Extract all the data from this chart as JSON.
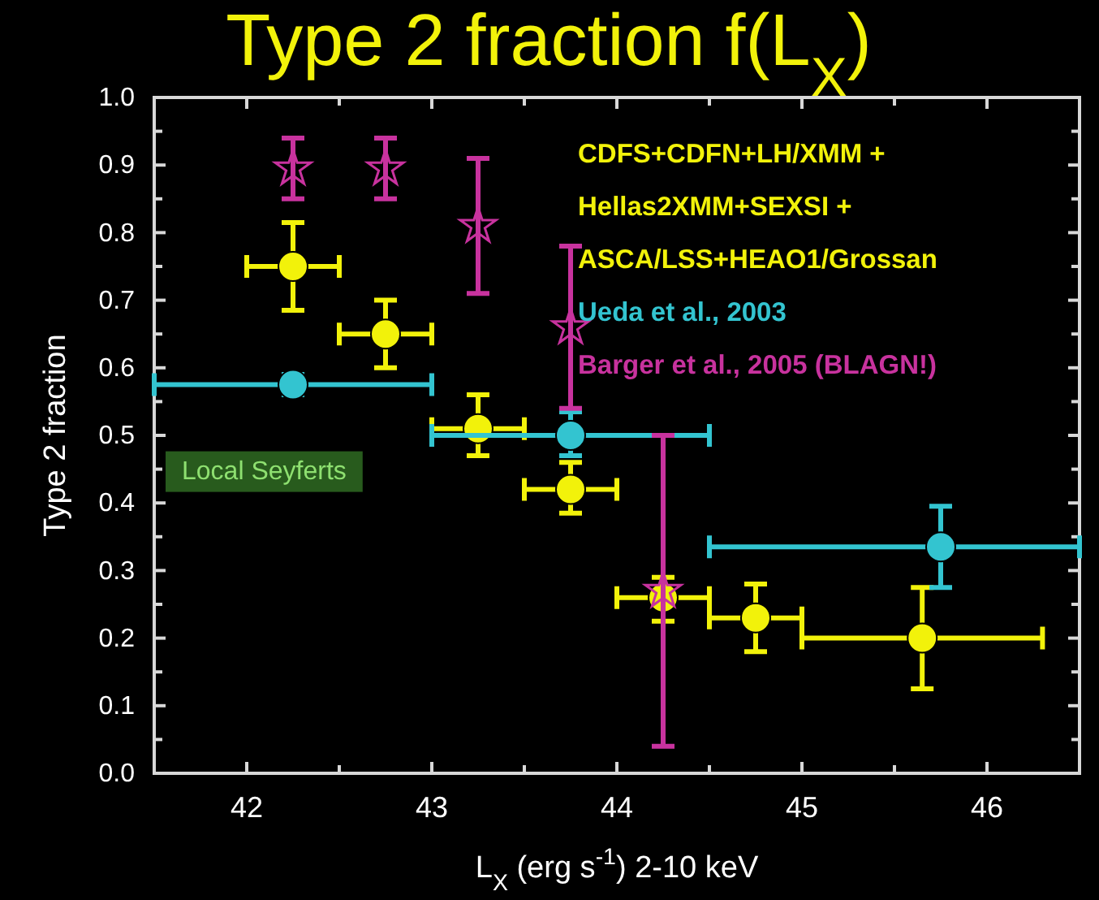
{
  "chart_data": {
    "type": "scatter",
    "title": "Type 2 fraction f(L$_{X}$)",
    "xlabel": "L$_{X}$ (erg s$^{-1}$) 2-10 keV",
    "ylabel": "Type 2 fraction",
    "xlim": [
      41.5,
      46.5
    ],
    "ylim": [
      0,
      1
    ],
    "xticks": [
      {
        "value": 41.5,
        "label": null
      },
      42,
      {
        "value": 42.5,
        "label": null
      },
      43,
      {
        "value": 43.5,
        "label": null
      },
      44,
      {
        "value": 44.5,
        "label": null
      },
      45,
      {
        "value": 45.5,
        "label": null
      },
      46,
      {
        "value": 46.5,
        "label": null
      }
    ],
    "yticks": [
      {
        "value": 0,
        "label": "0.0"
      },
      {
        "value": 0.05,
        "label": null
      },
      0.1,
      {
        "value": 0.15,
        "label": null
      },
      0.2,
      {
        "value": 0.25,
        "label": null
      },
      0.3,
      {
        "value": 0.35,
        "label": null
      },
      0.4,
      {
        "value": 0.45,
        "label": null
      },
      0.5,
      {
        "value": 0.55,
        "label": null
      },
      0.6,
      {
        "value": 0.65,
        "label": null
      },
      0.7,
      {
        "value": 0.75,
        "label": null
      },
      0.8,
      {
        "value": 0.85,
        "label": null
      },
      0.9,
      {
        "value": 0.95,
        "label": null
      },
      {
        "value": 1,
        "label": "1.0"
      }
    ],
    "grid": false,
    "legend": "top right",
    "annotations": [
      "Local Seyferts"
    ],
    "series": [
      {
        "name": "CDFS+CDFN+LH/XMM + Hellas2XMM+SEXSI + ASCA/LSS+HEAO1/Grossan",
        "color": "#f2f20a",
        "marker": "circle",
        "x": [
          42.25,
          42.75,
          43.25,
          43.75,
          44.25,
          44.75,
          45.65
        ],
        "values": [
          0.75,
          0.65,
          0.51,
          0.42,
          0.26,
          0.23,
          0.2
        ],
        "errors": [
          [
            0.685,
            0.815
          ],
          [
            0.6,
            0.7
          ],
          [
            0.47,
            0.56
          ],
          [
            0.385,
            0.46
          ],
          [
            0.225,
            0.29
          ],
          [
            0.18,
            0.28
          ],
          [
            0.125,
            0.275
          ]
        ],
        "xerrors": [
          [
            42,
            42.5
          ],
          [
            42.5,
            43
          ],
          [
            43,
            43.5
          ],
          [
            43.5,
            44
          ],
          [
            44,
            44.5
          ],
          [
            44.5,
            45
          ],
          [
            45,
            46.3
          ]
        ]
      },
      {
        "name": "Ueda et al., 2003",
        "color": "#33c4d0",
        "x": [
          42.25,
          43.75,
          45.75
        ],
        "values": [
          0.575,
          0.5,
          0.335
        ],
        "errors": [
          [
            0.56,
            0.59
          ],
          [
            0.47,
            0.535
          ],
          [
            0.275,
            0.395
          ]
        ],
        "xerrors": [
          [
            41.5,
            43
          ],
          [
            43,
            44.5
          ],
          [
            44.5,
            46.5
          ]
        ]
      },
      {
        "name": "Barger et al., 2005 (BLAGN!)",
        "color": "#c8329e",
        "marker": "star",
        "x": [
          42.25,
          42.75,
          43.25,
          43.75,
          44.25
        ],
        "values": [
          0.895,
          0.895,
          0.81,
          0.66,
          0.27
        ],
        "errors": [
          [
            0.85,
            0.94
          ],
          [
            0.85,
            0.94
          ],
          [
            0.71,
            0.91
          ],
          [
            0.54,
            0.78
          ],
          [
            0.04,
            0.5
          ]
        ]
      }
    ]
  }
}
